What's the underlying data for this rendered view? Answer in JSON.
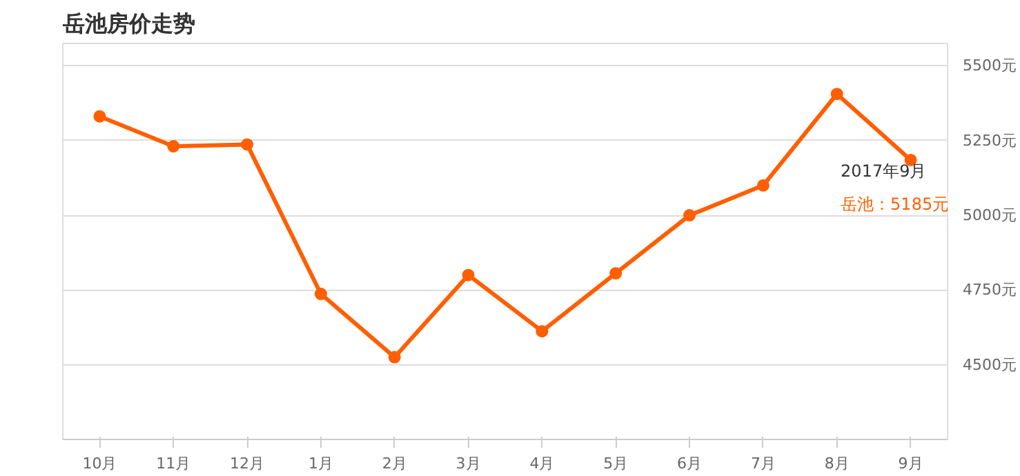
{
  "chart_data": {
    "type": "line",
    "title": "岳池房价走势",
    "categories": [
      "10月",
      "11月",
      "12月",
      "1月",
      "2月",
      "3月",
      "4月",
      "5月",
      "6月",
      "7月",
      "8月",
      "9月"
    ],
    "series": [
      {
        "color": "#ff5f00",
        "values": [
          5331,
          5231,
          5237,
          4737,
          4525,
          4800,
          4612,
          4806,
          5000,
          5100,
          5406,
          5185
        ]
      }
    ],
    "ylim": [
      4250,
      5575
    ],
    "yticks": [
      {
        "value": 4500,
        "label": "4500元"
      },
      {
        "value": 4750,
        "label": "4750元"
      },
      {
        "value": 5000,
        "label": "5000元"
      },
      {
        "value": 5250,
        "label": "5250元"
      },
      {
        "value": 5500,
        "label": "5500元"
      }
    ],
    "grid": "y",
    "marker": "circle",
    "line_style": "solid",
    "annotations": [
      {
        "text": "2017年9月",
        "x": "9月",
        "y": 5185
      },
      {
        "text": "岳池：5185元",
        "x": "9月",
        "y": 5185
      }
    ]
  }
}
